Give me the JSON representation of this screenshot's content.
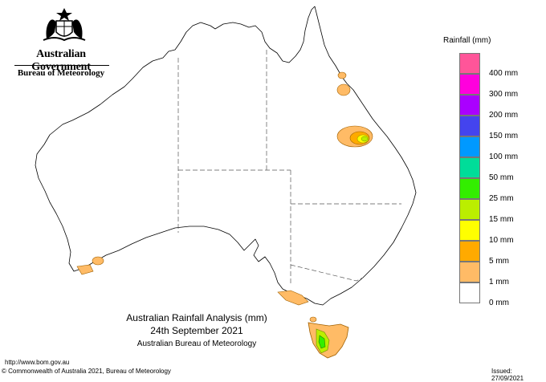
{
  "branding": {
    "government": "Australian Government",
    "agency": "Bureau of Meteorology"
  },
  "legend": {
    "title": "Rainfall (mm)",
    "items": [
      {
        "label": "",
        "color": "#ff5599"
      },
      {
        "label": "400 mm",
        "color": "#ff00dd"
      },
      {
        "label": "300 mm",
        "color": "#aa00ff"
      },
      {
        "label": "200 mm",
        "color": "#4444ee"
      },
      {
        "label": "150 mm",
        "color": "#0099ff"
      },
      {
        "label": "100 mm",
        "color": "#00dd99"
      },
      {
        "label": "50 mm",
        "color": "#33ee00"
      },
      {
        "label": "25 mm",
        "color": "#bbee00"
      },
      {
        "label": "15 mm",
        "color": "#ffff00"
      },
      {
        "label": "10 mm",
        "color": "#ffaa00"
      },
      {
        "label": "5 mm",
        "color": "#ffbb66"
      },
      {
        "label": "1 mm",
        "color": "#ffffff"
      },
      {
        "label": "0 mm",
        "color": ""
      }
    ]
  },
  "map": {
    "title_line1": "Australian Rainfall Analysis (mm)",
    "title_line2": "24th September 2021",
    "subtitle": "Australian Bureau of Meteorology"
  },
  "footer": {
    "url": "http://www.bom.gov.au",
    "copyright": "© Commonwealth of Australia 2021, Bureau of Meteorology",
    "issued": "Issued: 27/09/2021"
  }
}
